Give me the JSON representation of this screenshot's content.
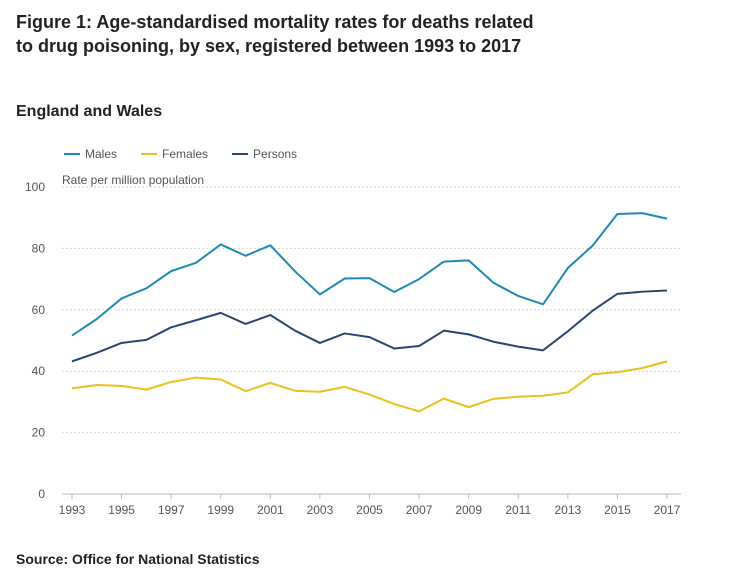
{
  "title": "Figure 1: Age-standardised mortality rates for deaths related to drug poisoning, by sex, registered between 1993 to 2017",
  "subtitle": "England and Wales",
  "source": "Source: Office for National Statistics",
  "chart_data": {
    "type": "line",
    "ylabel": "Rate per million population",
    "ylim": [
      0,
      100
    ],
    "yticks": [
      0,
      20,
      40,
      60,
      80,
      100
    ],
    "xticks": [
      1993,
      1995,
      1997,
      1999,
      2001,
      2003,
      2005,
      2007,
      2009,
      2011,
      2013,
      2015,
      2017
    ],
    "grid": true,
    "legend_placement": "top-left",
    "x": [
      1993,
      1994,
      1995,
      1996,
      1997,
      1998,
      1999,
      2000,
      2001,
      2002,
      2003,
      2004,
      2005,
      2006,
      2007,
      2008,
      2009,
      2010,
      2011,
      2012,
      2013,
      2014,
      2015,
      2016,
      2017
    ],
    "series": [
      {
        "name": "Males",
        "color": "#1f8ab3",
        "values": [
          51.6,
          57,
          63.7,
          67,
          72.6,
          75.3,
          81.3,
          77.6,
          81,
          72.5,
          65,
          70.2,
          70.3,
          65.8,
          70,
          75.7,
          76.1,
          68.8,
          64.5,
          61.8,
          73.6,
          80.9,
          91.2,
          91.5,
          89.7
        ]
      },
      {
        "name": "Females",
        "color": "#e8c21c",
        "values": [
          34.4,
          35.5,
          35.2,
          34,
          36.5,
          37.9,
          37.3,
          33.5,
          36.2,
          33.6,
          33.3,
          34.9,
          32.4,
          29.3,
          26.9,
          31.1,
          28.3,
          31,
          31.7,
          32,
          33.1,
          39,
          39.7,
          41,
          43.2
        ]
      },
      {
        "name": "Persons",
        "color": "#27476e",
        "values": [
          43.2,
          46,
          49.2,
          50.2,
          54.3,
          56.6,
          59,
          55.4,
          58.3,
          53.2,
          49.2,
          52.3,
          51.1,
          47.4,
          48.2,
          53.2,
          52,
          49.6,
          48,
          46.8,
          53,
          59.7,
          65.2,
          65.9,
          66.3
        ]
      }
    ]
  }
}
